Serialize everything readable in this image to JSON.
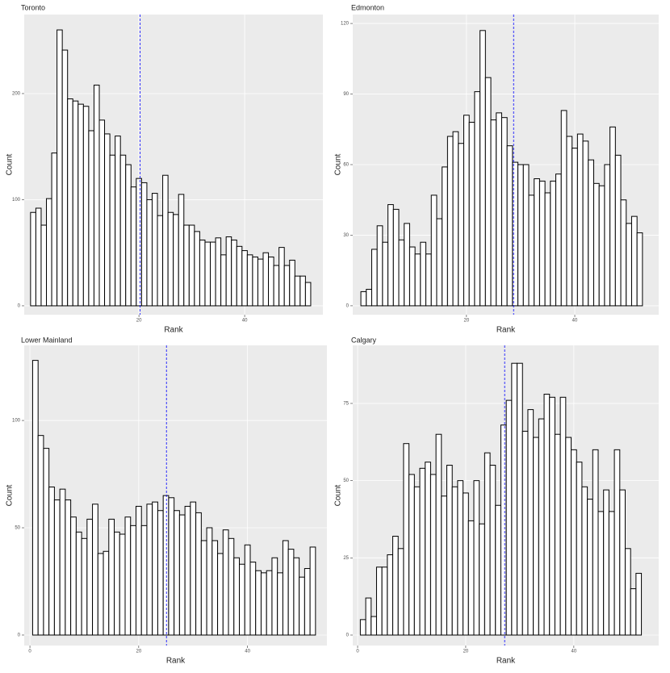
{
  "chart_data": [
    {
      "type": "histogram",
      "title": "Toronto",
      "x_label": "Rank",
      "y_label": "Count",
      "bins": [
        -0.5,
        0.5,
        1.5,
        2.5,
        3.5,
        4.5,
        5.5,
        6.5,
        7.5,
        8.5,
        9.5,
        10.5,
        11.5,
        12.5,
        13.5,
        14.5,
        15.5,
        16.5,
        17.5,
        18.5,
        19.5,
        20.5,
        21.5,
        22.5,
        23.5,
        24.5,
        25.5,
        26.5,
        27.5,
        28.5,
        29.5,
        30.5,
        31.5,
        32.5,
        33.5,
        34.5,
        35.5,
        36.5,
        37.5,
        38.5,
        39.5,
        40.5,
        41.5,
        42.5,
        43.5,
        44.5,
        45.5,
        46.5,
        47.5,
        48.5,
        49.5,
        50.5,
        51.5,
        52.5
      ],
      "values": [
        88,
        92,
        76,
        101,
        144,
        260,
        241,
        195,
        193,
        190,
        188,
        165,
        208,
        175,
        162,
        142,
        160,
        142,
        133,
        112,
        120,
        116,
        100,
        106,
        85,
        123,
        88,
        86,
        105,
        76,
        76,
        70,
        62,
        60,
        60,
        64,
        48,
        65,
        62,
        56,
        52,
        48,
        46,
        44,
        50,
        46,
        38,
        55,
        38,
        43,
        28,
        28,
        22
      ],
      "vline": 20.2,
      "xlim": [
        -1.7,
        54.8
      ],
      "ylim": [
        -8.4,
        274.5
      ],
      "xticks": [
        20,
        40
      ],
      "yticks": [
        0,
        100,
        200
      ],
      "grid": true,
      "color": "#ffffff",
      "line_color": "#0000ff"
    },
    {
      "type": "histogram",
      "title": "Edmonton",
      "x_label": "Rank",
      "y_label": "Count",
      "bins": [
        0.5,
        1.5,
        2.5,
        3.5,
        4.5,
        5.5,
        6.5,
        7.5,
        8.5,
        9.5,
        10.5,
        11.5,
        12.5,
        13.5,
        14.5,
        15.5,
        16.5,
        17.5,
        18.5,
        19.5,
        20.5,
        21.5,
        22.5,
        23.5,
        24.5,
        25.5,
        26.5,
        27.5,
        28.5,
        29.5,
        30.5,
        31.5,
        32.5,
        33.5,
        34.5,
        35.5,
        36.5,
        37.5,
        38.5,
        39.5,
        40.5,
        41.5,
        42.5,
        43.5,
        44.5,
        45.5,
        46.5,
        47.5,
        48.5,
        49.5,
        50.5,
        51.5,
        52.5
      ],
      "values": [
        6,
        7,
        24,
        34,
        27,
        43,
        41,
        28,
        35,
        25,
        22,
        27,
        22,
        47,
        37,
        59,
        72,
        74,
        69,
        81,
        78,
        91,
        117,
        97,
        79,
        82,
        80,
        68,
        61,
        60,
        60,
        47,
        54,
        53,
        48,
        53,
        56,
        83,
        72,
        67,
        73,
        70,
        62,
        52,
        51,
        60,
        76,
        64,
        45,
        35,
        38,
        31
      ],
      "vline": 28.7,
      "xlim": [
        -1.0,
        55.5
      ],
      "ylim": [
        -3.8,
        123.8
      ],
      "xticks": [
        20,
        40
      ],
      "yticks": [
        0,
        30,
        60,
        90,
        120
      ],
      "grid": true,
      "color": "#ffffff",
      "line_color": "#0000ff"
    },
    {
      "type": "histogram",
      "title": "Lower Mainland",
      "x_label": "Rank",
      "y_label": "Count",
      "bins": [
        0.5,
        1.5,
        2.5,
        3.5,
        4.5,
        5.5,
        6.5,
        7.5,
        8.5,
        9.5,
        10.5,
        11.5,
        12.5,
        13.5,
        14.5,
        15.5,
        16.5,
        17.5,
        18.5,
        19.5,
        20.5,
        21.5,
        22.5,
        23.5,
        24.5,
        25.5,
        26.5,
        27.5,
        28.5,
        29.5,
        30.5,
        31.5,
        32.5,
        33.5,
        34.5,
        35.5,
        36.5,
        37.5,
        38.5,
        39.5,
        40.5,
        41.5,
        42.5,
        43.5,
        44.5,
        45.5,
        46.5,
        47.5,
        48.5,
        49.5,
        50.5,
        51.5,
        52.5
      ],
      "values": [
        128,
        93,
        87,
        69,
        63,
        68,
        63,
        55,
        48,
        45,
        54,
        61,
        38,
        39,
        54,
        48,
        47,
        55,
        51,
        60,
        51,
        61,
        62,
        58,
        65,
        64,
        58,
        56,
        60,
        62,
        57,
        44,
        50,
        44,
        38,
        49,
        45,
        36,
        33,
        42,
        34,
        30,
        29,
        30,
        36,
        29,
        44,
        40,
        36,
        27,
        31,
        41
      ],
      "vline": 25.1,
      "xlim": [
        -1.05,
        54.6
      ],
      "ylim": [
        -4.9,
        135
      ],
      "xticks": [
        0,
        20,
        40
      ],
      "yticks": [
        0,
        50,
        100
      ],
      "grid": true,
      "color": "#ffffff",
      "line_color": "#0000ff"
    },
    {
      "type": "histogram",
      "title": "Calgary",
      "x_label": "Rank",
      "y_label": "Count",
      "bins": [
        0.5,
        1.5,
        2.5,
        3.5,
        4.5,
        5.5,
        6.5,
        7.5,
        8.5,
        9.5,
        10.5,
        11.5,
        12.5,
        13.5,
        14.5,
        15.5,
        16.5,
        17.5,
        18.5,
        19.5,
        20.5,
        21.5,
        22.5,
        23.5,
        24.5,
        25.5,
        26.5,
        27.5,
        28.5,
        29.5,
        30.5,
        31.5,
        32.5,
        33.5,
        34.5,
        35.5,
        36.5,
        37.5,
        38.5,
        39.5,
        40.5,
        41.5,
        42.5,
        43.5,
        44.5,
        45.5,
        46.5,
        47.5,
        48.5,
        49.5,
        50.5,
        51.5,
        52.5
      ],
      "values": [
        5,
        12,
        6,
        22,
        22,
        26,
        32,
        28,
        62,
        52,
        48,
        54,
        56,
        52,
        65,
        45,
        55,
        48,
        50,
        46,
        37,
        50,
        36,
        59,
        55,
        42,
        68,
        76,
        88,
        88,
        66,
        73,
        64,
        70,
        78,
        77,
        65,
        77,
        64,
        60,
        56,
        48,
        44,
        60,
        40,
        47,
        40,
        60,
        47,
        28,
        15,
        20
      ],
      "vline": 27.2,
      "xlim": [
        -0.9,
        55.7
      ],
      "ylim": [
        -3.4,
        93.8
      ],
      "xticks": [
        0,
        20,
        40
      ],
      "yticks": [
        0,
        25,
        50,
        75
      ],
      "grid": true,
      "color": "#ffffff",
      "line_color": "#0000ff"
    }
  ]
}
